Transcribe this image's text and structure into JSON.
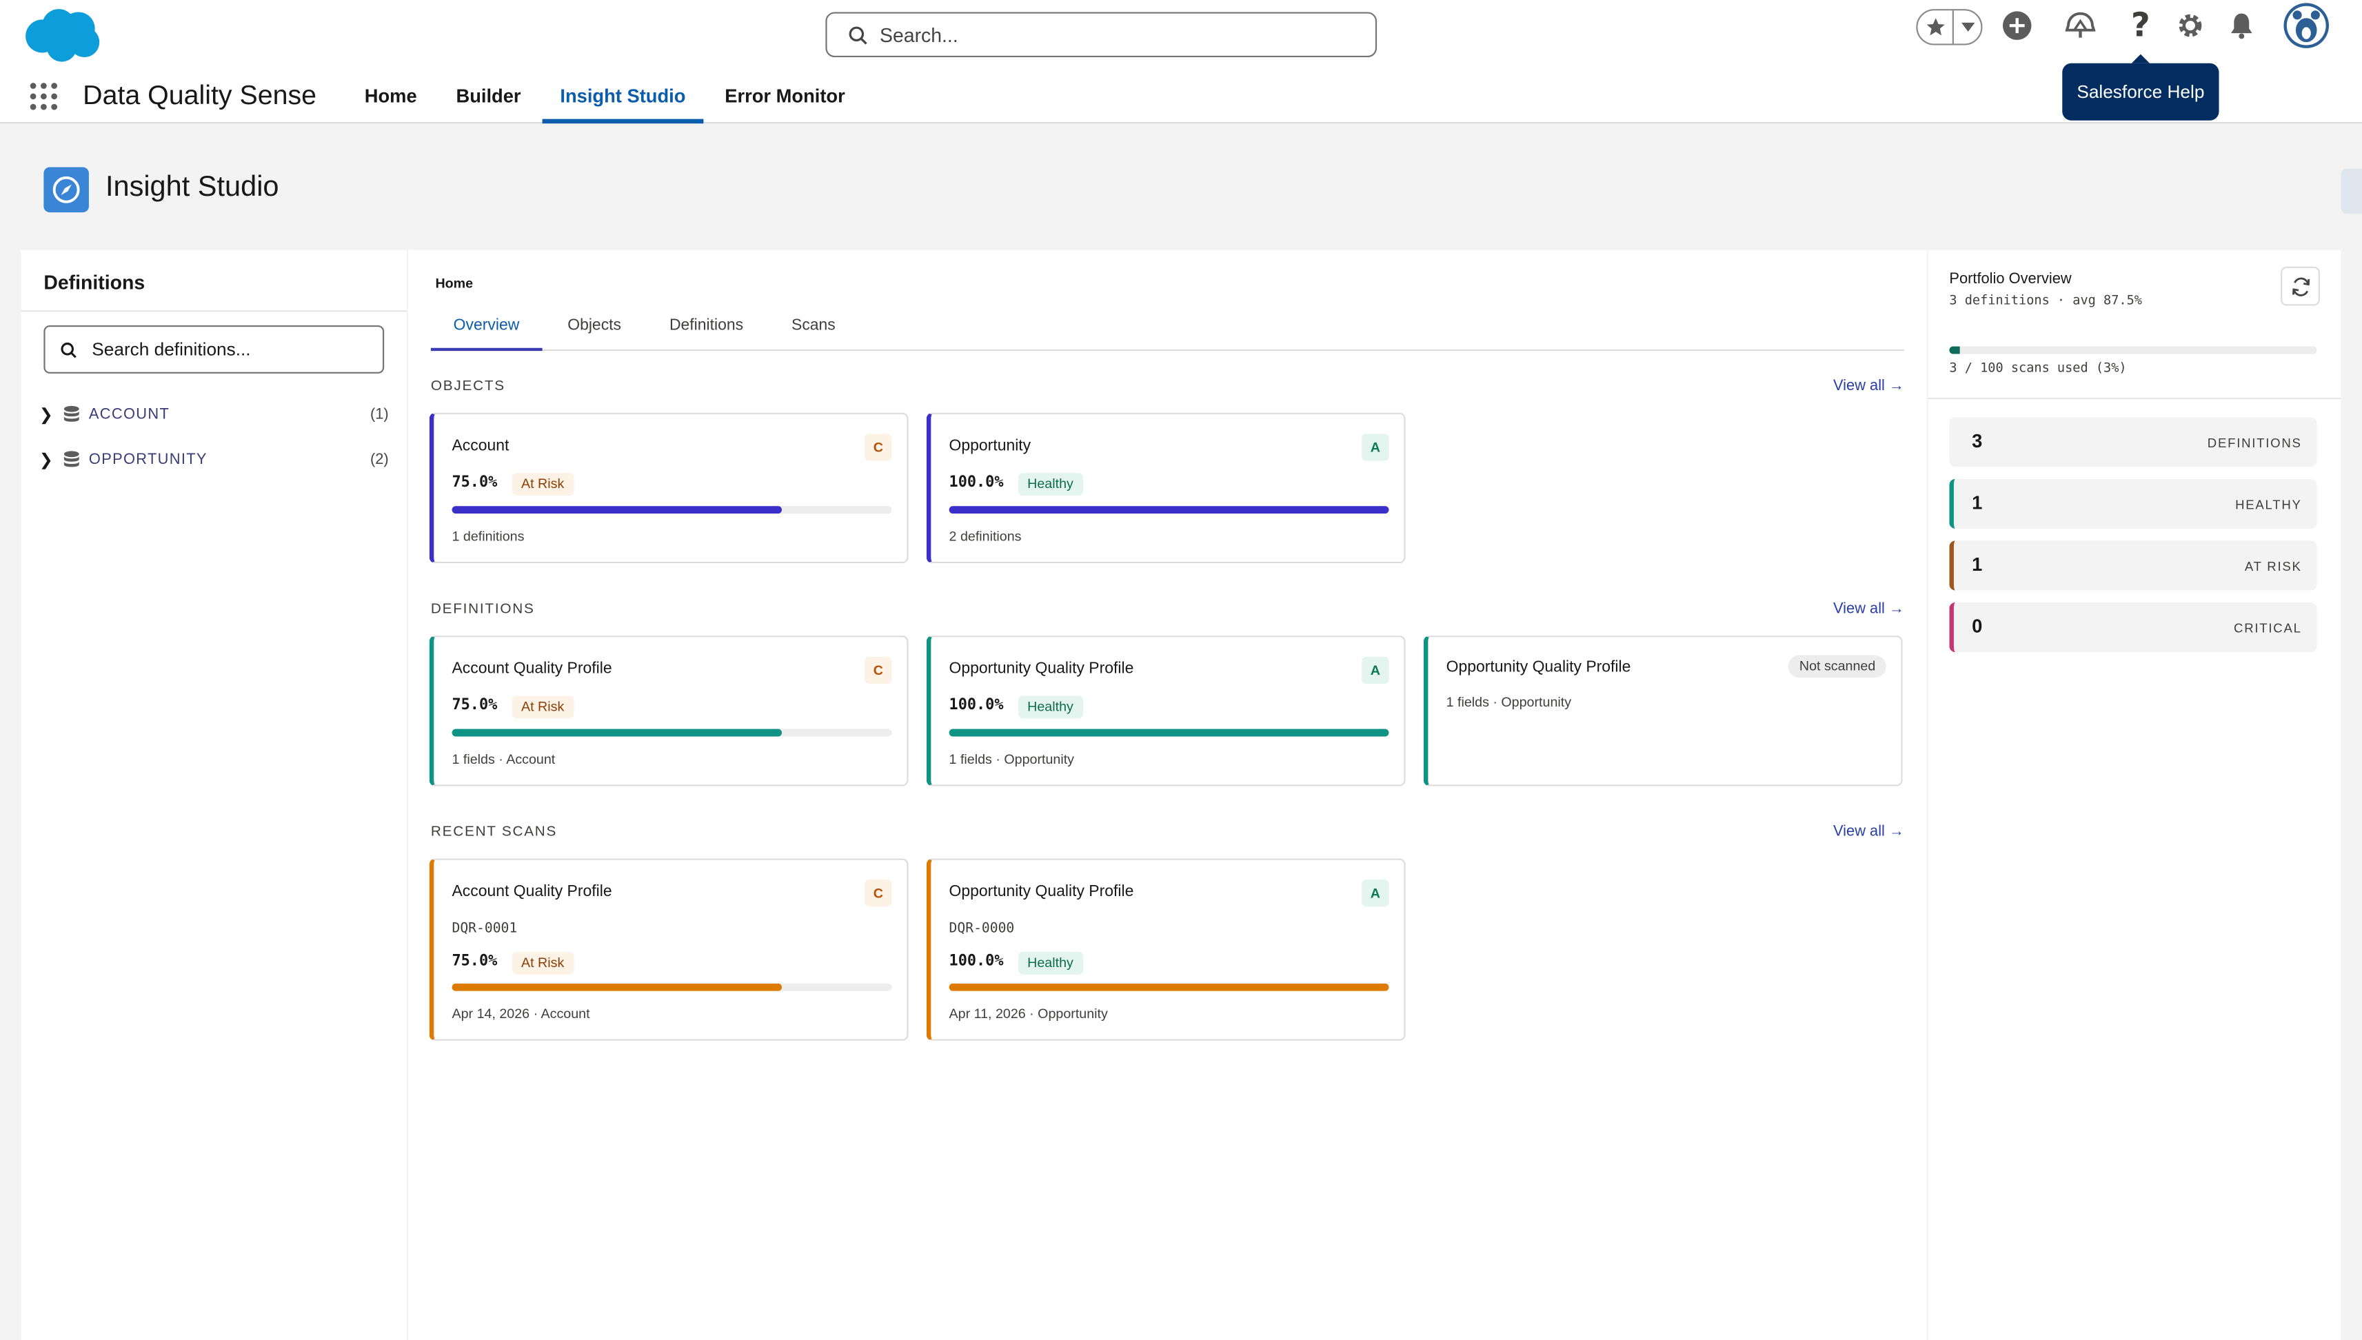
{
  "header": {
    "search_placeholder": "Search...",
    "tooltip": "Salesforce Help",
    "icons": [
      "favorites-star-icon",
      "chevron-down-icon",
      "add-icon",
      "trailhead-icon",
      "help-icon",
      "setup-gear-icon",
      "notifications-bell-icon",
      "avatar"
    ]
  },
  "app": {
    "name": "Data Quality Sense",
    "tabs": [
      {
        "label": "Home"
      },
      {
        "label": "Builder"
      },
      {
        "label": "Insight Studio",
        "active": true
      },
      {
        "label": "Error Monitor"
      }
    ]
  },
  "page": {
    "title": "Insight Studio"
  },
  "left": {
    "title": "Definitions",
    "search_placeholder": "Search definitions...",
    "tree": [
      {
        "label": "ACCOUNT",
        "count": "(1)"
      },
      {
        "label": "OPPORTUNITY",
        "count": "(2)"
      }
    ]
  },
  "center": {
    "breadcrumb": "Home",
    "tabs": [
      "Overview",
      "Objects",
      "Definitions",
      "Scans"
    ],
    "view_all": "View all →",
    "sections": {
      "objects": {
        "label": "OBJECTS",
        "cards": [
          {
            "title": "Account",
            "grade": "C",
            "score": "75.0%",
            "status": "At Risk",
            "progress": 0.75,
            "meta": "1 definitions"
          },
          {
            "title": "Opportunity",
            "grade": "A",
            "score": "100.0%",
            "status": "Healthy",
            "progress": 1.0,
            "meta": "2 definitions"
          }
        ]
      },
      "definitions": {
        "label": "DEFINITIONS",
        "cards": [
          {
            "title": "Account Quality Profile",
            "grade": "C",
            "score": "75.0%",
            "status": "At Risk",
            "progress": 0.75,
            "meta": "1 fields · Account"
          },
          {
            "title": "Opportunity Quality Profile",
            "grade": "A",
            "score": "100.0%",
            "status": "Healthy",
            "progress": 1.0,
            "meta": "1 fields · Opportunity"
          },
          {
            "title": "Opportunity Quality Profile",
            "badge": "Not scanned",
            "meta": "1 fields · Opportunity"
          }
        ]
      },
      "scans": {
        "label": "RECENT SCANS",
        "cards": [
          {
            "title": "Account Quality Profile",
            "grade": "C",
            "id": "DQR-0001",
            "score": "75.0%",
            "status": "At Risk",
            "progress": 0.75,
            "meta": "Apr 14, 2026 · Account"
          },
          {
            "title": "Opportunity Quality Profile",
            "grade": "A",
            "id": "DQR-0000",
            "score": "100.0%",
            "status": "Healthy",
            "progress": 1.0,
            "meta": "Apr 11, 2026 · Opportunity"
          }
        ]
      }
    }
  },
  "right": {
    "title": "Portfolio Overview",
    "subtitle": "3 definitions · avg 87.5%",
    "scans_used_fraction": 0.03,
    "scans_text": "3 / 100 scans used (3%)",
    "stats": [
      {
        "value": "3",
        "label": "DEFINITIONS"
      },
      {
        "value": "1",
        "label": "HEALTHY"
      },
      {
        "value": "1",
        "label": "AT RISK"
      },
      {
        "value": "0",
        "label": "CRITICAL"
      }
    ]
  },
  "colors": {
    "brand_blue": "#0b5cab",
    "objects_accent": "#3b2fc9",
    "definitions_accent": "#0e9384",
    "scans_accent": "#dd7a01",
    "healthy": "#0e9384",
    "at_risk": "#a0571e",
    "critical": "#c23972"
  }
}
